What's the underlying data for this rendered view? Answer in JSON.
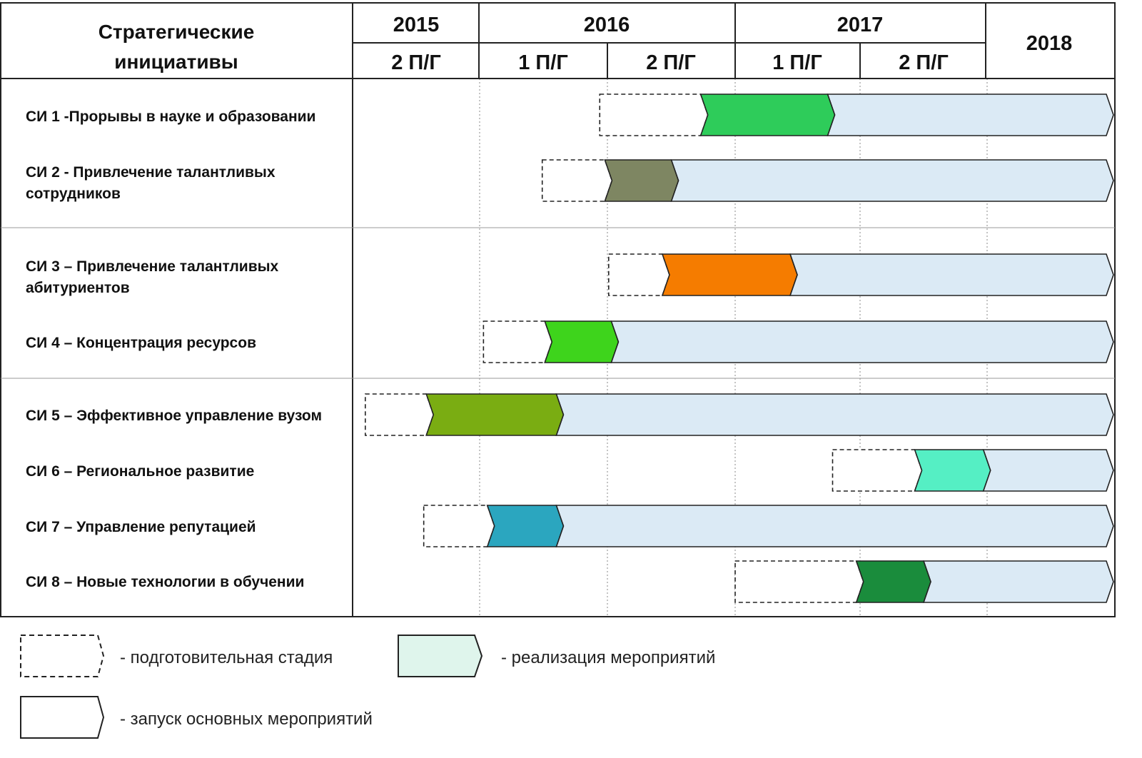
{
  "chart_data": {
    "type": "gantt",
    "header": {
      "label_lines": [
        "Стратегические",
        "инициативы"
      ],
      "years": [
        {
          "label": "2015",
          "halves": [
            "2 П/Г"
          ]
        },
        {
          "label": "2016",
          "halves": [
            "1 П/Г",
            "2 П/Г"
          ]
        },
        {
          "label": "2017",
          "halves": [
            "1 П/Г",
            "2 П/Г"
          ]
        },
        {
          "label": "2018",
          "halves": []
        }
      ]
    },
    "axis": {
      "start": "2015 2 П/Г",
      "unit": "half-year",
      "range": [
        0,
        6.0
      ]
    },
    "groups": [
      [
        0,
        1
      ],
      [
        2,
        3
      ],
      [
        4,
        5,
        6,
        7
      ]
    ],
    "initiatives": [
      {
        "lines": [
          "СИ 1 -Прорывы в науке и образовании"
        ],
        "prep_start": 1.94,
        "launch_start": 2.73,
        "impl_start": 3.74,
        "end": 6.0,
        "color": "#2ecc5a"
      },
      {
        "lines": [
          "СИ 2 - Привлечение талантливых",
          "сотрудников"
        ],
        "prep_start": 1.49,
        "launch_start": 1.98,
        "impl_start": 2.5,
        "end": 6.0,
        "color": "#7e8662"
      },
      {
        "lines": [
          "СИ 3 – Привлечение талантливых",
          "абитуриентов"
        ],
        "prep_start": 2.01,
        "launch_start": 2.43,
        "impl_start": 3.44,
        "end": 6.0,
        "color": "#f57c00"
      },
      {
        "lines": [
          "СИ 4 – Концентрация ресурсов"
        ],
        "prep_start": 1.03,
        "launch_start": 1.51,
        "impl_start": 2.03,
        "end": 6.0,
        "color": "#3ed41c"
      },
      {
        "lines": [
          "СИ 5 – Эффективное управление вузом"
        ],
        "prep_start": 0.1,
        "launch_start": 0.58,
        "impl_start": 1.6,
        "end": 6.0,
        "color": "#7aad12"
      },
      {
        "lines": [
          "СИ 6 – Региональное развитие"
        ],
        "prep_start": 3.78,
        "launch_start": 4.43,
        "impl_start": 4.97,
        "end": 6.0,
        "color": "#55efc4"
      },
      {
        "lines": [
          "СИ 7 – Управление репутацией"
        ],
        "prep_start": 0.56,
        "launch_start": 1.06,
        "impl_start": 1.6,
        "end": 6.0,
        "color": "#2ba6bf"
      },
      {
        "lines": [
          "СИ 8 – Новые технологии в обучении"
        ],
        "prep_start": 3.0,
        "launch_start": 3.97,
        "impl_start": 4.5,
        "end": 6.0,
        "color": "#1a8c3c"
      }
    ],
    "colors": {
      "implementation": "#dbeaf5",
      "legend_impl": "#dff5ec",
      "border": "#222222"
    },
    "legend": [
      {
        "kind": "dashed",
        "text": "- подготовительная стадия"
      },
      {
        "kind": "impl",
        "text": "- реализация мероприятий"
      },
      {
        "kind": "launch",
        "text": "- запуск основных мероприятий"
      }
    ]
  }
}
